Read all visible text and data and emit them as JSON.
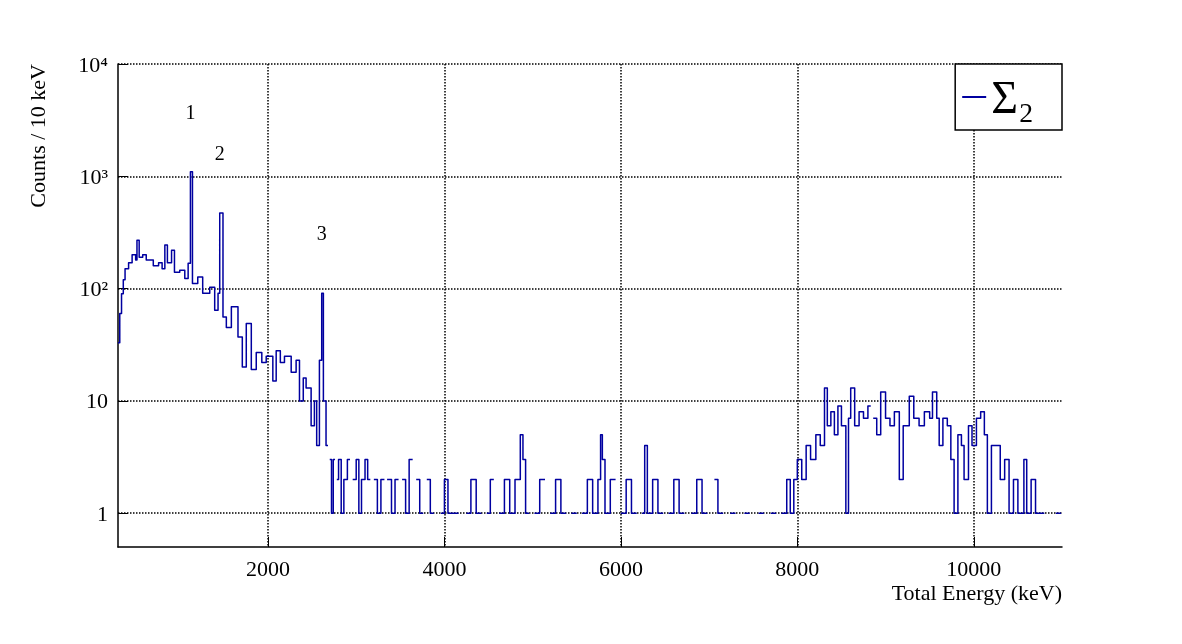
{
  "chart_data": {
    "type": "step",
    "xlabel": "Total Energy (keV)",
    "ylabel": "Counts / 10 keV",
    "log": "y",
    "grid": true,
    "legend": "top right",
    "marker": "none",
    "line_style": "solid",
    "xlim": [
      300,
      11000
    ],
    "xticks": [
      2000,
      4000,
      6000,
      8000,
      10000
    ],
    "ylim": [
      0.5,
      10000
    ],
    "yticks": [
      1,
      10,
      {
        "value": 100,
        "label": "10²"
      },
      {
        "value": 1000,
        "label": "10³"
      },
      {
        "value": 10000,
        "label": "10⁴"
      }
    ],
    "annotations": [
      {
        "text": "1",
        "x": 1121,
        "y": 1100
      },
      {
        "text": "2",
        "x": 1453,
        "y": 470
      },
      {
        "text": "3",
        "x": 2609,
        "y": 91
      }
    ],
    "series": [
      {
        "name": "Σ₂",
        "color": "#0000a0",
        "x": [
          300,
          320,
          340,
          360,
          380,
          420,
          460,
          500,
          515,
          540,
          580,
          620,
          700,
          760,
          800,
          831,
          860,
          907,
          940,
          1000,
          1057,
          1095,
          1121,
          1144,
          1204,
          1260,
          1340,
          1396,
          1434,
          1453,
          1490,
          1528,
          1585,
          1660,
          1709,
          1754,
          1811,
          1867,
          1930,
          1980,
          2055,
          2093,
          2140,
          2187,
          2263,
          2319,
          2357,
          2400,
          2432,
          2489,
          2526,
          2552,
          2583,
          2609,
          2628,
          2658,
          2680,
          2700,
          2720,
          2740,
          2760,
          2780,
          2800,
          2830,
          2860,
          2900,
          2930,
          2960,
          3000,
          3030,
          3060,
          3100,
          3130,
          3160,
          3200,
          3240,
          3280,
          3320,
          3350,
          3400,
          3440,
          3480,
          3520,
          3560,
          3600,
          3640,
          3680,
          3720,
          3760,
          3800,
          3840,
          3880,
          3960,
          4000,
          4040,
          4100,
          4160,
          4250,
          4300,
          4360,
          4420,
          4480,
          4520,
          4560,
          4620,
          4680,
          4740,
          4800,
          4860,
          4890,
          4920,
          4960,
          5020,
          5080,
          5140,
          5200,
          5260,
          5320,
          5380,
          5440,
          5500,
          5560,
          5620,
          5680,
          5740,
          5770,
          5790,
          5820,
          5880,
          5940,
          6000,
          6060,
          6120,
          6180,
          6240,
          6270,
          6300,
          6360,
          6420,
          6480,
          6540,
          6600,
          6660,
          6720,
          6800,
          6860,
          6920,
          6980,
          7060,
          7100,
          7160,
          7240,
          7300,
          7400,
          7460,
          7560,
          7620,
          7700,
          7760,
          7820,
          7880,
          7920,
          7960,
          8000,
          8050,
          8100,
          8150,
          8210,
          8260,
          8308,
          8340,
          8380,
          8420,
          8460,
          8500,
          8550,
          8580,
          8605,
          8650,
          8700,
          8750,
          8800,
          8832,
          8860,
          8900,
          8945,
          9000,
          9050,
          9100,
          9156,
          9200,
          9269,
          9320,
          9380,
          9440,
          9500,
          9532,
          9580,
          9608,
          9650,
          9700,
          9740,
          9777,
          9820,
          9860,
          9890,
          9940,
          9980,
          10030,
          10078,
          10120,
          10154,
          10200,
          10267,
          10300,
          10350,
          10400,
          10450,
          10500,
          10568,
          10600,
          10650,
          10700,
          10752,
          10800,
          10930,
          10990
        ],
        "values": [
          33,
          60,
          90,
          120,
          150,
          170,
          200,
          180,
          270,
          190,
          200,
          180,
          160,
          170,
          150,
          245,
          170,
          220,
          140,
          146,
          123,
          168,
          1100,
          111,
          127,
          91,
          103,
          64,
          91,
          470,
          56,
          45,
          69,
          37,
          20,
          49,
          19,
          27,
          22,
          25,
          15,
          28,
          22,
          25,
          18,
          23,
          10,
          16,
          13,
          6,
          10,
          4,
          23,
          91,
          10,
          4,
          null,
          3,
          1,
          3,
          null,
          2,
          3,
          1,
          2,
          3,
          null,
          2,
          3,
          1,
          2,
          3,
          2,
          null,
          2,
          1,
          2,
          null,
          2,
          1,
          2,
          null,
          2,
          1,
          3,
          null,
          2,
          1,
          null,
          2,
          1,
          null,
          1,
          2,
          1,
          1,
          null,
          1,
          2,
          1,
          null,
          1,
          2,
          null,
          1,
          2,
          1,
          2,
          5,
          3,
          1,
          null,
          1,
          2,
          null,
          1,
          2,
          1,
          null,
          1,
          null,
          1,
          2,
          1,
          2,
          5,
          3,
          1,
          2,
          null,
          1,
          2,
          1,
          null,
          1,
          4,
          1,
          2,
          1,
          null,
          1,
          2,
          1,
          null,
          1,
          2,
          1,
          null,
          2,
          1,
          null,
          1,
          null,
          1,
          null,
          1,
          null,
          1,
          null,
          1,
          2,
          1,
          2,
          3,
          2,
          4,
          3,
          5,
          4,
          13,
          6,
          8,
          5,
          9,
          6,
          1,
          7,
          13,
          6,
          8,
          7,
          9,
          null,
          7,
          5,
          12,
          7,
          6,
          8,
          2,
          6,
          11,
          7,
          6,
          8,
          7,
          12,
          7,
          4,
          7,
          6,
          3,
          1,
          5,
          4,
          2,
          6,
          4,
          7,
          8,
          5,
          1,
          4,
          4,
          2,
          3,
          1,
          2,
          1,
          3,
          1,
          2,
          1,
          1,
          null,
          1,
          1
        ]
      }
    ]
  }
}
